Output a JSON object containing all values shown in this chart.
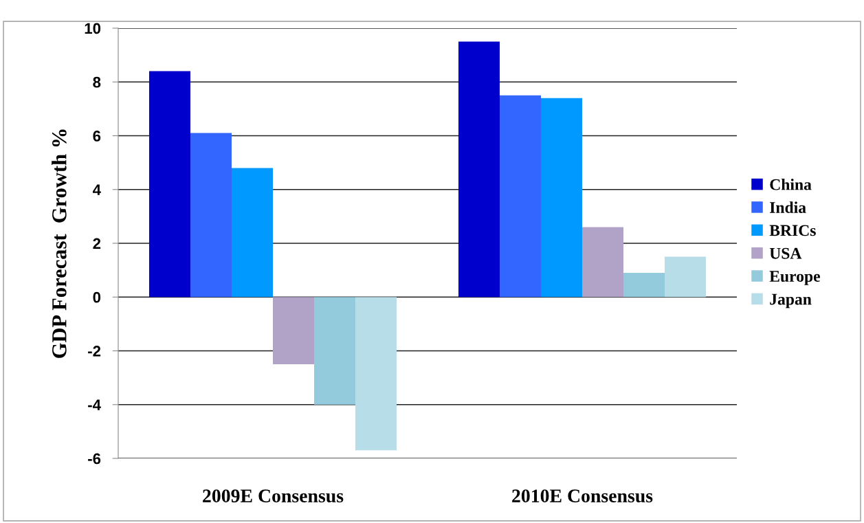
{
  "chart_data": {
    "type": "bar",
    "ylabel": "GDP Forecast  Growth %",
    "categories": [
      "2009E Consensus",
      "2010E Consensus"
    ],
    "series": [
      {
        "name": "China",
        "color": "#0000cc",
        "values": [
          8.4,
          9.5
        ]
      },
      {
        "name": "India",
        "color": "#3366ff",
        "values": [
          6.1,
          7.5
        ]
      },
      {
        "name": "BRICs",
        "color": "#0099ff",
        "values": [
          4.8,
          7.4
        ]
      },
      {
        "name": "USA",
        "color": "#b1a3c8",
        "values": [
          -2.5,
          2.6
        ]
      },
      {
        "name": "Europe",
        "color": "#93cbdc",
        "values": [
          -4.0,
          0.9
        ]
      },
      {
        "name": "Japan",
        "color": "#b7dde8",
        "values": [
          -5.7,
          1.5
        ]
      }
    ],
    "ylim": [
      -6,
      10
    ],
    "yticks": [
      -6,
      -4,
      -2,
      0,
      2,
      4,
      6,
      8,
      10
    ],
    "grid": "y",
    "legend": "right"
  }
}
